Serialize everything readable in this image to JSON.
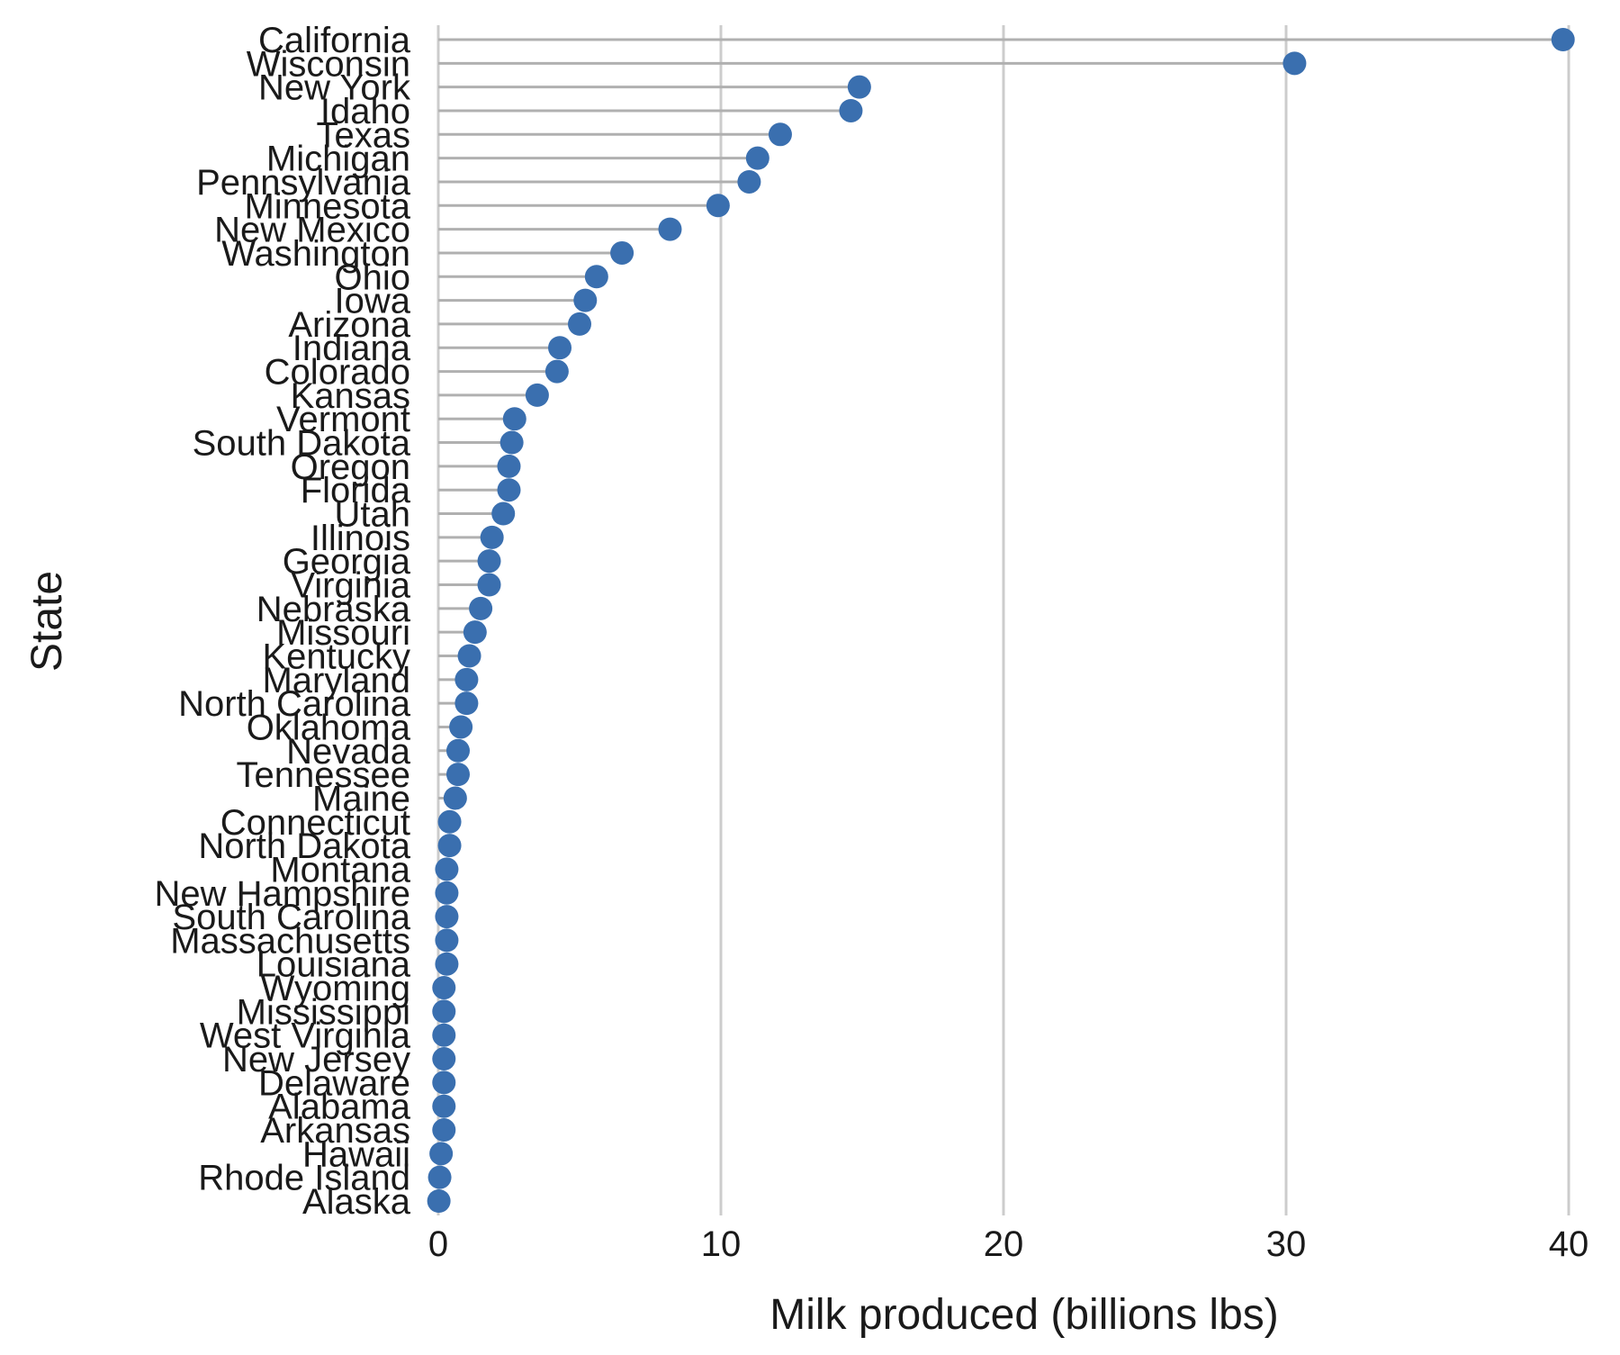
{
  "chart_data": {
    "type": "lollipop",
    "xlabel": "Milk produced (billions lbs)",
    "ylabel": "State",
    "xlim": [
      0,
      40
    ],
    "x_ticks": [
      0,
      10,
      20,
      30,
      40
    ],
    "grid": "vertical",
    "legend": "none",
    "colors": {
      "point": "#3a6faf",
      "stem": "#b0b0b0",
      "grid": "#cccccc"
    },
    "categories": [
      "California",
      "Wisconsin",
      "New York",
      "Idaho",
      "Texas",
      "Michigan",
      "Pennsylvania",
      "Minnesota",
      "New Mexico",
      "Washington",
      "Ohio",
      "Iowa",
      "Arizona",
      "Indiana",
      "Colorado",
      "Kansas",
      "Vermont",
      "South Dakota",
      "Oregon",
      "Florida",
      "Utah",
      "Illinois",
      "Georgia",
      "Virginia",
      "Nebraska",
      "Missouri",
      "Kentucky",
      "Maryland",
      "North Carolina",
      "Oklahoma",
      "Nevada",
      "Tennessee",
      "Maine",
      "Connecticut",
      "North Dakota",
      "Montana",
      "New Hampshire",
      "South Carolina",
      "Massachusetts",
      "Louisiana",
      "Wyoming",
      "Mississippi",
      "West Virginia",
      "New Jersey",
      "Delaware",
      "Alabama",
      "Arkansas",
      "Hawaii",
      "Rhode Island",
      "Alaska"
    ],
    "values": [
      39.8,
      30.3,
      14.9,
      14.6,
      12.1,
      11.3,
      11.0,
      9.9,
      8.2,
      6.5,
      5.6,
      5.2,
      5.0,
      4.3,
      4.2,
      3.5,
      2.7,
      2.6,
      2.5,
      2.5,
      2.3,
      1.9,
      1.8,
      1.8,
      1.5,
      1.3,
      1.1,
      1.0,
      1.0,
      0.8,
      0.7,
      0.7,
      0.6,
      0.4,
      0.4,
      0.3,
      0.3,
      0.3,
      0.3,
      0.3,
      0.2,
      0.2,
      0.2,
      0.2,
      0.2,
      0.2,
      0.2,
      0.1,
      0.05,
      0.02
    ]
  }
}
